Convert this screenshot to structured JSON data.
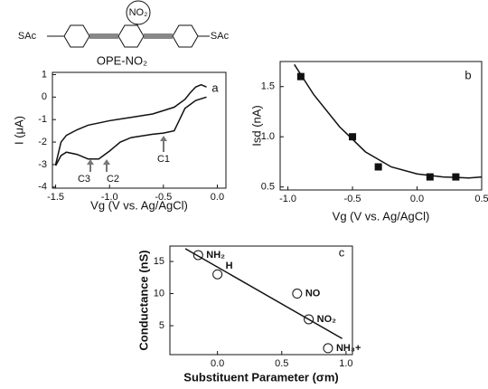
{
  "molecule": {
    "left_group": "SAc",
    "right_group": "SAc",
    "substituent": "NO₂",
    "name": "OPE-NO₂"
  },
  "chart_data": [
    {
      "type": "line",
      "label": "a",
      "xlabel": "Vg (V vs. Ag/AgCl)",
      "ylabel": "I (μA)",
      "xlim": [
        -1.53,
        0.08
      ],
      "ylim": [
        -4.05,
        1.1
      ],
      "xticks": [
        {
          "value": -1.5,
          "label": "-1.5"
        },
        {
          "value": -1.0,
          "label": "-1.0"
        },
        {
          "value": -0.5,
          "label": "-0.5"
        },
        {
          "value": 0.0,
          "label": "0.0"
        }
      ],
      "yticks": [
        -4,
        -3,
        -2,
        -1,
        0,
        1
      ],
      "annotations": [
        "C1",
        "C2",
        "C3"
      ],
      "series": [
        {
          "color": "#111111",
          "x": [
            -1.5,
            -1.45,
            -1.4,
            -1.3,
            -1.2,
            -1.0,
            -0.8,
            -0.6,
            -0.4,
            -0.3,
            -0.25,
            -0.2,
            -0.15,
            -0.1
          ],
          "values": [
            -3.0,
            -2.0,
            -1.7,
            -1.45,
            -1.25,
            -1.05,
            -0.9,
            -0.75,
            -0.45,
            -0.1,
            0.2,
            0.45,
            0.55,
            0.45
          ]
        },
        {
          "color": "#111111",
          "x": [
            -1.5,
            -1.45,
            -1.4,
            -1.3,
            -1.2,
            -1.1,
            -1.0,
            -0.9,
            -0.8,
            -0.6,
            -0.5,
            -0.4,
            -0.35,
            -0.3,
            -0.2,
            -0.1
          ],
          "values": [
            -3.05,
            -2.6,
            -2.45,
            -2.55,
            -2.75,
            -2.75,
            -2.4,
            -2.0,
            -1.8,
            -1.65,
            -1.6,
            -1.5,
            -1.0,
            -0.5,
            -0.15,
            0.0
          ]
        }
      ]
    },
    {
      "type": "scatter",
      "label": "b",
      "xlabel": "Vg (V vs. Ag/AgCl)",
      "ylabel": "Isd (nA)",
      "xlim": [
        -1.06,
        0.5
      ],
      "ylim": [
        0.47,
        1.75
      ],
      "xticks": [
        {
          "value": -1.0,
          "label": "-1.0"
        },
        {
          "value": -0.5,
          "label": "-0.5"
        },
        {
          "value": 0.0,
          "label": "0.0"
        },
        {
          "value": 0.5,
          "label": "0.5"
        }
      ],
      "yticks": [
        {
          "value": 0.5,
          "label": "0.5"
        },
        {
          "value": 1.0,
          "label": "1.0"
        },
        {
          "value": 1.5,
          "label": "1.5"
        }
      ],
      "series": [
        {
          "type": "scatter",
          "marker": "square",
          "color": "#111111",
          "x": [
            -0.9,
            -0.5,
            -0.3,
            0.1,
            0.3
          ],
          "values": [
            1.6,
            1.0,
            0.7,
            0.6,
            0.6
          ]
        },
        {
          "type": "line",
          "color": "#111111",
          "x": [
            -0.95,
            -0.8,
            -0.6,
            -0.4,
            -0.2,
            0.0,
            0.2,
            0.4,
            0.5
          ],
          "values": [
            1.72,
            1.42,
            1.1,
            0.85,
            0.7,
            0.63,
            0.6,
            0.59,
            0.6
          ]
        }
      ]
    },
    {
      "type": "scatter",
      "label": "c",
      "xlabel": "Substituent Parameter (σm)",
      "ylabel": "Conductance (nS)",
      "xlim": [
        -0.37,
        1.05
      ],
      "ylim": [
        0.5,
        17.4
      ],
      "xticks": [
        {
          "value": 0.0,
          "label": "0.0"
        },
        {
          "value": 0.5,
          "label": "0.5"
        },
        {
          "value": 1.0,
          "label": "1.0"
        }
      ],
      "yticks": [
        5,
        10,
        15
      ],
      "series": [
        {
          "type": "scatter",
          "marker": "circle-open",
          "color": "#111111",
          "x": [
            -0.15,
            0.0,
            0.62,
            0.71,
            0.86
          ],
          "values": [
            16,
            13,
            10,
            6,
            1.5
          ],
          "labels": [
            "NH₂",
            "H",
            "NO",
            "NO₂",
            "NH₃+"
          ]
        },
        {
          "type": "line",
          "color": "#111111",
          "x": [
            -0.25,
            0.97
          ],
          "values": [
            17,
            3
          ]
        }
      ]
    }
  ]
}
